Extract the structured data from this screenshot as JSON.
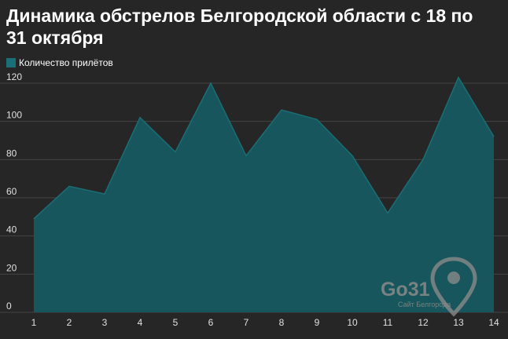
{
  "colors": {
    "background": "#262626",
    "area_fill": "#16565c",
    "area_stroke": "#1a6e75",
    "grid": "#444444",
    "watermark": "#8a8a8a"
  },
  "chart_data": {
    "type": "area",
    "title": "Динамика обстрелов Белгородской области с 18 по 31 октября",
    "categories": [
      "1",
      "2",
      "3",
      "4",
      "5",
      "6",
      "7",
      "8",
      "9",
      "10",
      "11",
      "12",
      "13",
      "14"
    ],
    "series": [
      {
        "name": "Количество прилётов",
        "values": [
          49,
          66,
          62,
          102,
          84,
          120,
          82,
          106,
          101,
          82,
          52,
          80,
          123,
          92
        ]
      }
    ],
    "ylim": [
      0,
      120
    ],
    "yticks": [
      0,
      20,
      40,
      60,
      80,
      100,
      120
    ],
    "grid": true,
    "legend_position": "top-left"
  },
  "watermark": {
    "brand": "Go31",
    "tagline": "Сайт Белгорода"
  }
}
